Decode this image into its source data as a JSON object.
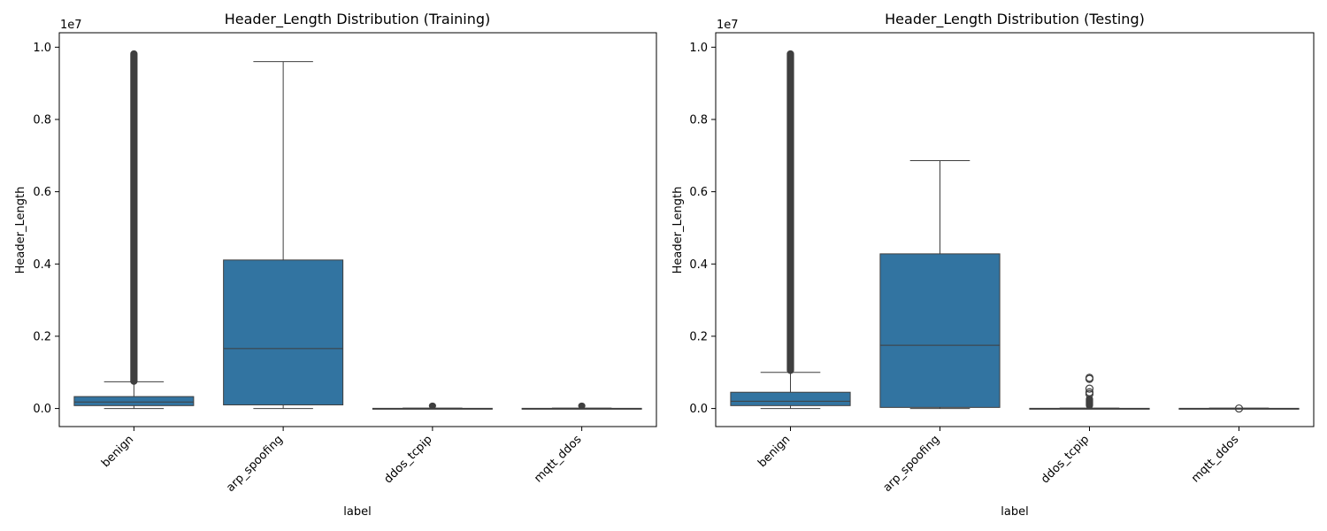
{
  "chart_data": [
    {
      "type": "box",
      "title": "Header_Length Distribution (Training)",
      "xlabel": "label",
      "ylabel": "Header_Length",
      "y_offset_label": "1e7",
      "ylim": [
        -0.05,
        1.04
      ],
      "yticks": [
        0.0,
        0.2,
        0.4,
        0.6,
        0.8,
        1.0
      ],
      "ytick_labels": [
        "0.0",
        "0.2",
        "0.4",
        "0.6",
        "0.8",
        "1.0"
      ],
      "categories": [
        "benign",
        "arp_spoofing",
        "ddos_tcpip",
        "mqtt_ddos"
      ],
      "box_color": "#3274a1",
      "edge_color": "#3f3f3f",
      "boxes": [
        {
          "label": "benign",
          "whislo": 0.0,
          "q1": 0.008,
          "med": 0.018,
          "q3": 0.033,
          "whishi": 0.074,
          "fliers_range": [
            0.067,
            0.99
          ],
          "fliers_dense": true
        },
        {
          "label": "arp_spoofing",
          "whislo": 0.0,
          "q1": 0.01,
          "med": 0.166,
          "q3": 0.411,
          "whishi": 0.96,
          "fliers_range": null,
          "fliers_dense": false
        },
        {
          "label": "ddos_tcpip",
          "whislo": 0.0,
          "q1": 0.0,
          "med": 0.0,
          "q3": 0.0005,
          "whishi": 0.001,
          "fliers_range": [
            0.0,
            0.015
          ],
          "fliers_dense": true
        },
        {
          "label": "mqtt_ddos",
          "whislo": 0.0,
          "q1": 0.0,
          "med": 0.0,
          "q3": 0.0005,
          "whishi": 0.001,
          "fliers_range": [
            0.0,
            0.015
          ],
          "fliers_dense": true
        }
      ]
    },
    {
      "type": "box",
      "title": "Header_Length Distribution (Testing)",
      "xlabel": "label",
      "ylabel": "Header_Length",
      "y_offset_label": "1e7",
      "ylim": [
        -0.05,
        1.04
      ],
      "yticks": [
        0.0,
        0.2,
        0.4,
        0.6,
        0.8,
        1.0
      ],
      "ytick_labels": [
        "0.0",
        "0.2",
        "0.4",
        "0.6",
        "0.8",
        "1.0"
      ],
      "categories": [
        "benign",
        "arp_spoofing",
        "ddos_tcpip",
        "mqtt_ddos"
      ],
      "box_color": "#3274a1",
      "edge_color": "#3f3f3f",
      "boxes": [
        {
          "label": "benign",
          "whislo": 0.0,
          "q1": 0.008,
          "med": 0.02,
          "q3": 0.045,
          "whishi": 0.1,
          "fliers_range": [
            0.097,
            0.99
          ],
          "fliers_dense": true
        },
        {
          "label": "arp_spoofing",
          "whislo": 0.0,
          "q1": 0.003,
          "med": 0.175,
          "q3": 0.428,
          "whishi": 0.686,
          "fliers_range": null,
          "fliers_dense": false
        },
        {
          "label": "ddos_tcpip",
          "whislo": 0.0,
          "q1": 0.0,
          "med": 0.0,
          "q3": 0.0005,
          "whishi": 0.001,
          "fliers_range": [
            0.0,
            0.035
          ],
          "fliers_dense": true,
          "fliers_extra": [
            0.04,
            0.045,
            0.055,
            0.082,
            0.085
          ]
        },
        {
          "label": "mqtt_ddos",
          "whislo": 0.0,
          "q1": 0.0,
          "med": 0.0,
          "q3": 0.0005,
          "whishi": 0.001,
          "fliers_range": null,
          "fliers_dense": false,
          "fliers_extra": [
            0.0
          ]
        }
      ]
    }
  ]
}
